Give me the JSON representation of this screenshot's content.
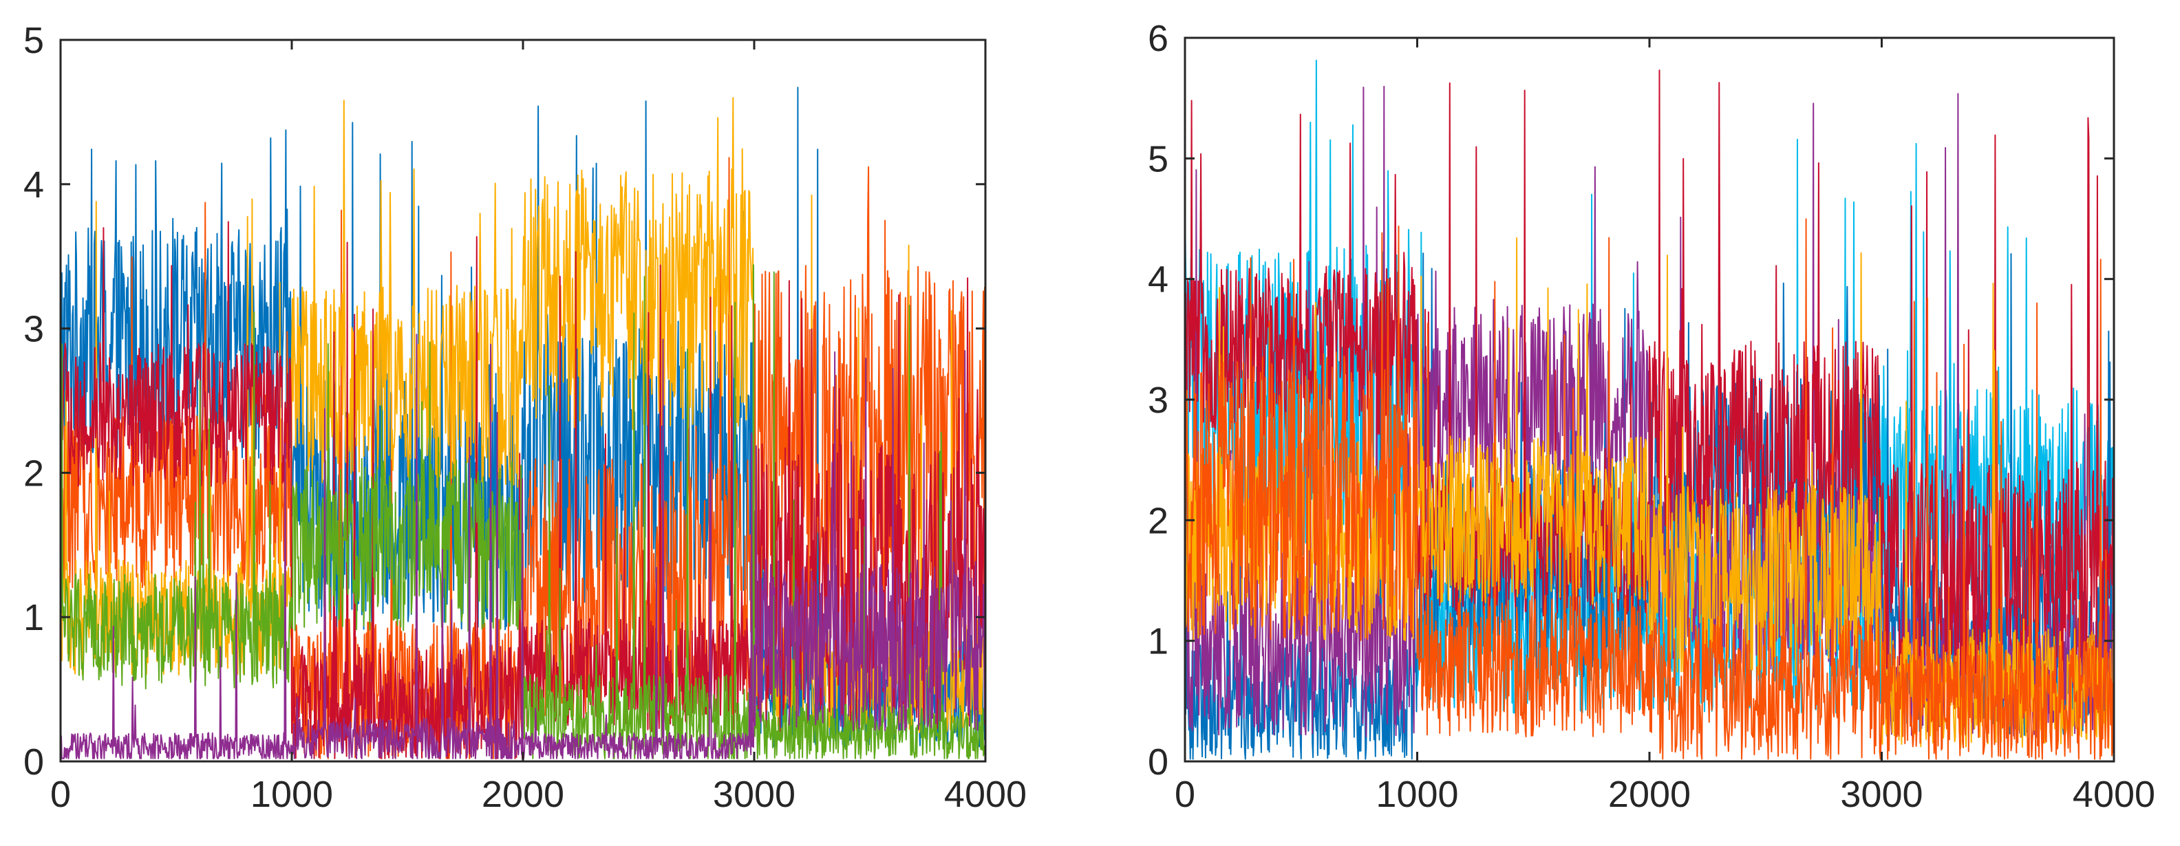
{
  "chart_data": [
    {
      "type": "line",
      "title": "",
      "xlabel": "",
      "ylabel": "",
      "xlim": [
        0,
        4000
      ],
      "ylim": [
        0,
        5
      ],
      "xticks": [
        0,
        1000,
        2000,
        3000,
        4000
      ],
      "yticks": [
        0,
        1,
        2,
        3,
        4,
        5
      ],
      "xtick_labels": [
        "0",
        "1000",
        "2000",
        "3000",
        "4000"
      ],
      "ytick_labels": [
        "0",
        "1",
        "2",
        "3",
        "4",
        "5"
      ],
      "grid": false,
      "legend": "none",
      "description_of_series": "Dense noisy multi-series traces; each series has a level per segment of 1000 samples",
      "segment_edges": [
        0,
        1000,
        2000,
        3000,
        4000
      ],
      "series": [
        {
          "name": "series-blue",
          "color": "#0072BD",
          "levels": [
            2.9,
            1.8,
            2.1,
            0.5
          ],
          "spread": [
            0.8,
            0.9,
            1.0,
            0.4
          ],
          "peak": 4.7
        },
        {
          "name": "series-orange",
          "color": "#F95206",
          "levels": [
            1.8,
            0.5,
            1.2,
            2.2
          ],
          "spread": [
            0.6,
            0.5,
            0.9,
            1.2
          ],
          "peak": 4.2
        },
        {
          "name": "series-yellow",
          "color": "#FCAE00",
          "levels": [
            1.0,
            2.6,
            3.2,
            0.6
          ],
          "spread": [
            0.4,
            0.7,
            0.9,
            0.4
          ],
          "peak": 4.75
        },
        {
          "name": "series-red",
          "color": "#C90F2D",
          "levels": [
            2.4,
            0.4,
            0.6,
            1.2
          ],
          "spread": [
            0.5,
            0.4,
            0.4,
            1.0
          ],
          "peak": 3.8
        },
        {
          "name": "series-green",
          "color": "#5FAA1B",
          "levels": [
            0.9,
            1.5,
            0.3,
            0.2
          ],
          "spread": [
            0.4,
            0.6,
            0.3,
            0.2
          ],
          "peak": 3.6
        },
        {
          "name": "series-purple",
          "color": "#8E2C8F",
          "levels": [
            0.1,
            0.15,
            0.1,
            0.8
          ],
          "spread": [
            0.1,
            0.15,
            0.1,
            0.6
          ],
          "peak": 3.0
        }
      ]
    },
    {
      "type": "line",
      "title": "",
      "xlabel": "",
      "ylabel": "",
      "xlim": [
        0,
        4000
      ],
      "ylim": [
        0,
        6
      ],
      "xticks": [
        0,
        1000,
        2000,
        3000,
        4000
      ],
      "yticks": [
        0,
        1,
        2,
        3,
        4,
        5,
        6
      ],
      "xtick_labels": [
        "0",
        "1000",
        "2000",
        "3000",
        "4000"
      ],
      "ytick_labels": [
        "0",
        "1",
        "2",
        "3",
        "4",
        "5",
        "6"
      ],
      "grid": false,
      "legend": "none",
      "description_of_series": "Dense noisy multi-series traces; each series has a level per segment of 1000 samples",
      "segment_edges": [
        0,
        1000,
        2000,
        3000,
        4000
      ],
      "series": [
        {
          "name": "series-cyan",
          "color": "#00BAEB",
          "levels": [
            3.0,
            1.2,
            1.2,
            2.2
          ],
          "spread": [
            1.3,
            0.8,
            0.8,
            0.9
          ],
          "peak": 6.0
        },
        {
          "name": "series-blue",
          "color": "#0072BD",
          "levels": [
            0.5,
            1.6,
            2.2,
            1.0
          ],
          "spread": [
            0.5,
            0.9,
            1.0,
            0.8
          ],
          "peak": 4.3
        },
        {
          "name": "series-purple",
          "color": "#8E2C8F",
          "levels": [
            1.0,
            3.0,
            1.5,
            0.8
          ],
          "spread": [
            0.8,
            0.8,
            0.8,
            0.6
          ],
          "peak": 5.6
        },
        {
          "name": "series-red",
          "color": "#C90F2D",
          "levels": [
            3.4,
            1.8,
            2.6,
            1.6
          ],
          "spread": [
            0.7,
            0.6,
            0.9,
            0.9
          ],
          "peak": 5.8
        },
        {
          "name": "series-yellow",
          "color": "#FCAE00",
          "levels": [
            1.8,
            2.0,
            1.5,
            0.6
          ],
          "spread": [
            0.8,
            0.7,
            0.8,
            0.5
          ],
          "peak": 4.6
        },
        {
          "name": "series-orange",
          "color": "#F95206",
          "levels": [
            2.2,
            0.8,
            0.6,
            0.5
          ],
          "spread": [
            1.2,
            0.6,
            0.6,
            0.5
          ],
          "peak": 4.5
        }
      ]
    }
  ]
}
